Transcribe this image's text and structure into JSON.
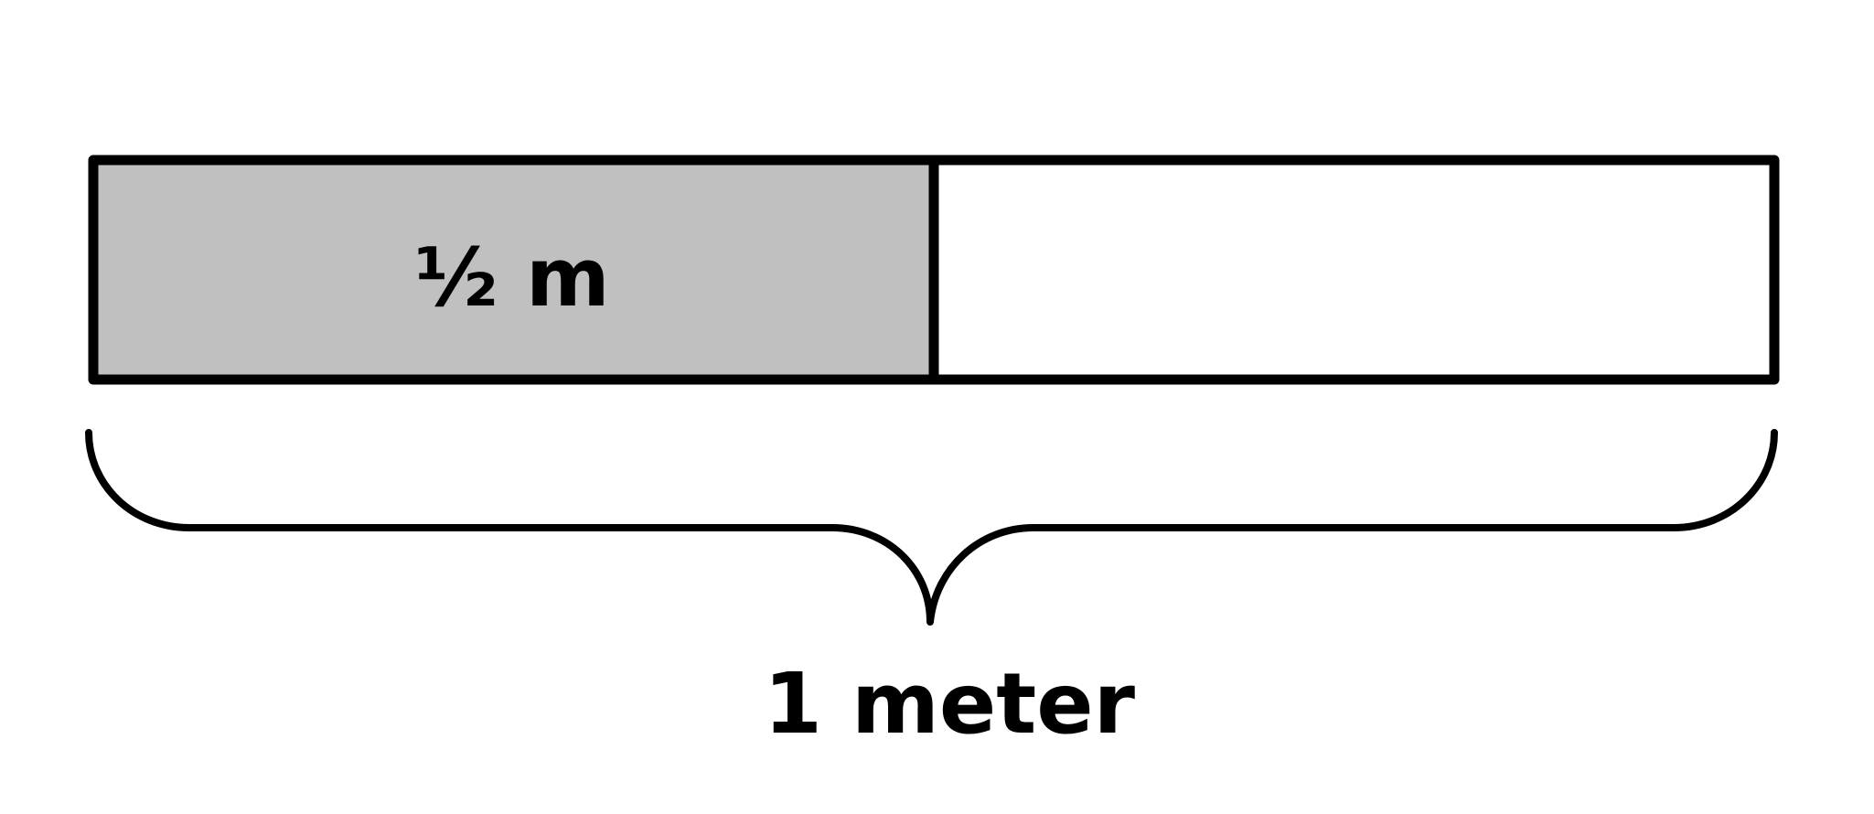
{
  "diagram": {
    "segments": [
      {
        "label": "½ m",
        "fraction": 0.5,
        "fill": "#c0c0c0"
      },
      {
        "label": "",
        "fraction": 0.5,
        "fill": "#ffffff"
      }
    ],
    "total_label": "1 meter",
    "colors": {
      "stroke": "#000000",
      "shaded": "#c0c0c0",
      "background": "#ffffff"
    }
  }
}
